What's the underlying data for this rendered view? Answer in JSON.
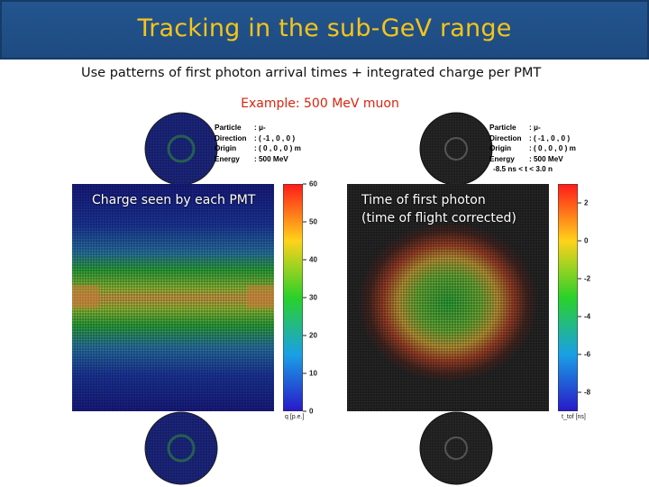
{
  "slide": {
    "title": "Tracking in the sub-GeV range",
    "subtitle": "Use patterns of first photon arrival times + integrated charge per PMT",
    "example": "Example: 500 MeV muon"
  },
  "colors": {
    "title_bg": "#1f4e87",
    "title_text": "#f5c518",
    "example_text": "#d9240f"
  },
  "panels": [
    {
      "overlay_label": "Charge seen by each PMT",
      "info": [
        {
          "key": "Particle",
          "value": ": μ-"
        },
        {
          "key": "Direction",
          "value": ": ( -1 , 0 , 0 )"
        },
        {
          "key": "Origin",
          "value": ": ( 0 , 0 , 0 ) m"
        },
        {
          "key": "Energy",
          "value": ": 500 MeV"
        }
      ],
      "colorbar": {
        "ticks": [
          "60",
          "50",
          "40",
          "30",
          "20",
          "10",
          "0"
        ],
        "range": [
          0,
          60
        ],
        "label": "q [p.e.]"
      }
    },
    {
      "overlay_label_1": "Time of first photon",
      "overlay_label_2": "(time of flight corrected)",
      "info": [
        {
          "key": "Particle",
          "value": ": μ-"
        },
        {
          "key": "Direction",
          "value": ": ( -1 , 0 , 0 )"
        },
        {
          "key": "Origin",
          "value": ": ( 0 , 0 , 0 ) m"
        },
        {
          "key": "Energy",
          "value": ": 500 MeV"
        }
      ],
      "time_window": "-8.5 ns < t < 3.0 n",
      "colorbar": {
        "ticks": [
          "2",
          "0",
          "-2",
          "-4",
          "-6",
          "-8"
        ],
        "range": [
          -9,
          3
        ],
        "label": "t_tof [ns]"
      }
    }
  ]
}
